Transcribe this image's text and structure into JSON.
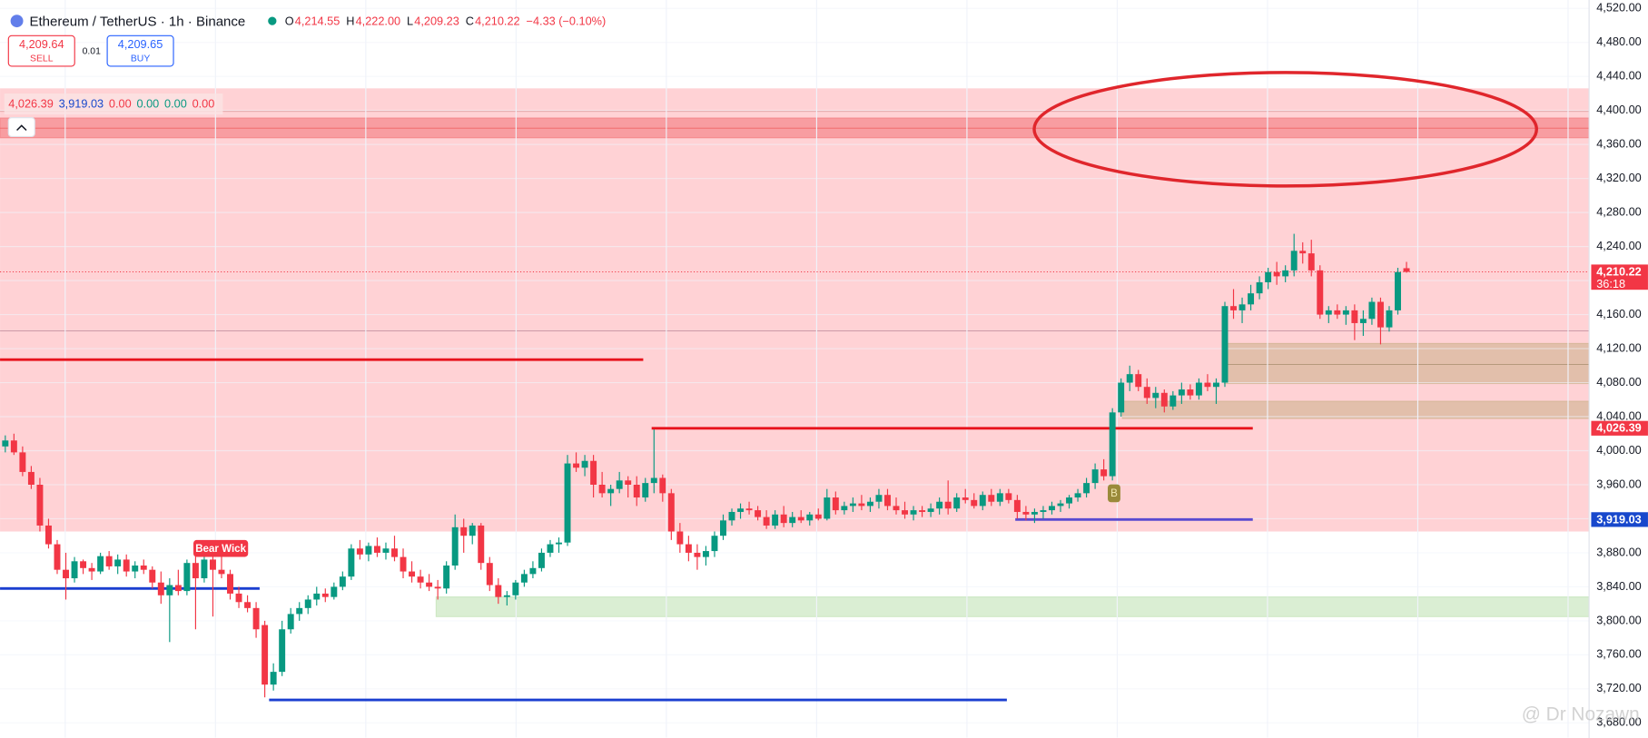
{
  "chart_data": {
    "type": "candlestick",
    "header": {
      "symbol": "Ethereum / TetherUS · 1h · Binance",
      "ohlc_labels": [
        "O",
        "H",
        "L",
        "C"
      ],
      "ohlc_values": [
        "4,214.55",
        "4,222.00",
        "4,209.23",
        "4,210.22"
      ],
      "change": "−4.33 (−0.10%)"
    },
    "trade": {
      "sell_price": "4,209.64",
      "sell_label": "SELL",
      "spread": "0.01",
      "buy_price": "4,209.65",
      "buy_label": "BUY"
    },
    "indicator_values": [
      {
        "label": "4,026.39",
        "color": "#f23645"
      },
      {
        "label": "3,919.03",
        "color": "#1848cc"
      },
      {
        "label": "0.00",
        "color": "#f23645"
      },
      {
        "label": "0.00",
        "color": "#089981"
      },
      {
        "label": "0.00",
        "color": "#089981"
      },
      {
        "label": "0.00",
        "color": "#f23645"
      }
    ],
    "up_color": "#089981",
    "down_color": "#f23645",
    "open": [
      4005,
      4012,
      3998,
      3975,
      3960,
      3912,
      3890,
      3860,
      3850,
      3870,
      3862,
      3858,
      3876,
      3864,
      3872,
      3858,
      3865,
      3860,
      3845,
      3830,
      3842,
      3835,
      3868,
      3850,
      3872,
      3860,
      3855,
      3832,
      3822,
      3815,
      3795,
      3725,
      3740,
      3790,
      3808,
      3815,
      3825,
      3832,
      3828,
      3840,
      3852,
      3885,
      3878,
      3888,
      3880,
      3885,
      3875,
      3858,
      3852,
      3845,
      3840,
      3838,
      3865,
      3910,
      3900,
      3912,
      3868,
      3842,
      3828,
      3830,
      3845,
      3855,
      3862,
      3880,
      3890,
      3892,
      3985,
      3980,
      3988,
      3960,
      3950,
      3955,
      3965,
      3960,
      3945,
      3962,
      3968,
      3950,
      3905,
      3890,
      3880,
      3875,
      3882,
      3900,
      3918,
      3928,
      3932,
      3930,
      3922,
      3912,
      3925,
      3915,
      3922,
      3918,
      3925,
      3920,
      3945,
      3930,
      3935,
      3938,
      3935,
      3940,
      3948,
      3935,
      3930,
      3925,
      3930,
      3928,
      3932,
      3940,
      3932,
      3945,
      3942,
      3935,
      3948,
      3940,
      3950,
      3942,
      3928,
      3925,
      3928,
      3930,
      3935,
      3938,
      3945,
      3950,
      3962,
      3978,
      3970,
      4045,
      4080,
      4090,
      4075,
      4062,
      4068,
      4052,
      4065,
      4072,
      4065,
      4080,
      4075,
      4080,
      4170,
      4165,
      4172,
      4185,
      4198,
      4210,
      4205,
      4212,
      4235,
      4232,
      4212,
      4160,
      4165,
      4160,
      4165,
      4150,
      4155,
      4175,
      4145,
      4165,
      4214.55
    ],
    "high": [
      4018,
      4020,
      4005,
      3982,
      3968,
      3920,
      3895,
      3880,
      3875,
      3872,
      3868,
      3880,
      3882,
      3878,
      3878,
      3870,
      3872,
      3864,
      3858,
      3850,
      3860,
      3872,
      3880,
      3878,
      3880,
      3880,
      3860,
      3840,
      3830,
      3822,
      3800,
      3750,
      3800,
      3815,
      3822,
      3830,
      3840,
      3838,
      3845,
      3858,
      3890,
      3895,
      3892,
      3898,
      3892,
      3900,
      3885,
      3870,
      3860,
      3855,
      3848,
      3870,
      3925,
      3920,
      3915,
      3915,
      3875,
      3850,
      3835,
      3848,
      3860,
      3870,
      3885,
      3895,
      3898,
      3995,
      3998,
      3995,
      3995,
      3975,
      3960,
      3975,
      3970,
      3970,
      3968,
      4025,
      3972,
      3955,
      3915,
      3900,
      3890,
      3888,
      3905,
      3925,
      3932,
      3938,
      3940,
      3935,
      3930,
      3930,
      3935,
      3928,
      3930,
      3928,
      3932,
      3955,
      3952,
      3940,
      3945,
      3948,
      3945,
      3955,
      3955,
      3945,
      3940,
      3935,
      3935,
      3938,
      3945,
      3965,
      3950,
      3955,
      3950,
      3952,
      3955,
      3955,
      3955,
      3948,
      3935,
      3932,
      3935,
      3940,
      3942,
      3948,
      3955,
      3968,
      3985,
      3990,
      4050,
      4085,
      4100,
      4095,
      4085,
      4075,
      4072,
      4070,
      4080,
      4078,
      4085,
      4090,
      4085,
      4175,
      4190,
      4180,
      4195,
      4205,
      4215,
      4222,
      4218,
      4255,
      4245,
      4248,
      4218,
      4170,
      4172,
      4170,
      4172,
      4165,
      4180,
      4180,
      4170,
      4215,
      4222
    ],
    "low": [
      3998,
      3995,
      3970,
      3955,
      3905,
      3885,
      3855,
      3825,
      3845,
      3855,
      3848,
      3855,
      3860,
      3855,
      3852,
      3850,
      3855,
      3838,
      3820,
      3775,
      3830,
      3830,
      3790,
      3845,
      3805,
      3850,
      3825,
      3815,
      3810,
      3780,
      3710,
      3718,
      3735,
      3785,
      3800,
      3808,
      3818,
      3822,
      3825,
      3836,
      3848,
      3872,
      3870,
      3875,
      3872,
      3870,
      3850,
      3845,
      3838,
      3835,
      3825,
      3832,
      3860,
      3880,
      3890,
      3860,
      3835,
      3820,
      3818,
      3825,
      3840,
      3850,
      3858,
      3875,
      3880,
      3888,
      3975,
      3970,
      3945,
      3945,
      3935,
      3950,
      3945,
      3935,
      3940,
      3950,
      3940,
      3895,
      3880,
      3870,
      3860,
      3865,
      3875,
      3895,
      3912,
      3920,
      3925,
      3918,
      3908,
      3908,
      3910,
      3910,
      3915,
      3912,
      3918,
      3918,
      3925,
      3925,
      3928,
      3930,
      3928,
      3932,
      3930,
      3925,
      3920,
      3918,
      3922,
      3922,
      3925,
      3925,
      3928,
      3938,
      3932,
      3930,
      3935,
      3935,
      3938,
      3920,
      3918,
      3915,
      3920,
      3925,
      3928,
      3932,
      3940,
      3945,
      3955,
      3965,
      3965,
      4040,
      4070,
      4070,
      4055,
      4050,
      4045,
      4048,
      4055,
      4060,
      4060,
      4070,
      4055,
      4075,
      4155,
      4150,
      4165,
      4178,
      4190,
      4195,
      4198,
      4205,
      4220,
      4205,
      4155,
      4150,
      4155,
      4148,
      4130,
      4135,
      4148,
      4125,
      4140,
      4160,
      4209.23
    ],
    "close": [
      4012,
      3998,
      3975,
      3960,
      3912,
      3890,
      3860,
      3850,
      3870,
      3862,
      3858,
      3876,
      3864,
      3872,
      3858,
      3865,
      3860,
      3845,
      3830,
      3842,
      3835,
      3868,
      3850,
      3872,
      3860,
      3855,
      3832,
      3822,
      3815,
      3790,
      3725,
      3740,
      3790,
      3808,
      3815,
      3825,
      3832,
      3828,
      3840,
      3852,
      3885,
      3878,
      3888,
      3880,
      3885,
      3875,
      3858,
      3852,
      3845,
      3840,
      3838,
      3865,
      3910,
      3900,
      3912,
      3868,
      3842,
      3828,
      3830,
      3845,
      3855,
      3862,
      3880,
      3890,
      3892,
      3985,
      3980,
      3988,
      3960,
      3950,
      3955,
      3965,
      3960,
      3945,
      3962,
      3968,
      3950,
      3905,
      3890,
      3880,
      3875,
      3882,
      3900,
      3918,
      3928,
      3932,
      3930,
      3922,
      3912,
      3925,
      3915,
      3922,
      3918,
      3925,
      3920,
      3945,
      3930,
      3935,
      3938,
      3935,
      3940,
      3948,
      3935,
      3930,
      3925,
      3930,
      3928,
      3932,
      3940,
      3932,
      3945,
      3942,
      3935,
      3948,
      3940,
      3950,
      3942,
      3928,
      3925,
      3928,
      3930,
      3935,
      3938,
      3945,
      3950,
      3962,
      3978,
      3970,
      4045,
      4080,
      4090,
      4075,
      4062,
      4068,
      4052,
      4065,
      4072,
      4065,
      4080,
      4075,
      4080,
      4170,
      4165,
      4172,
      4185,
      4198,
      4210,
      4205,
      4212,
      4235,
      4232,
      4212,
      4160,
      4165,
      4160,
      4165,
      4150,
      4155,
      4175,
      4145,
      4165,
      4210,
      4210.22
    ],
    "ylim": [
      3680,
      4520
    ],
    "yticks": [
      {
        "value": 3680,
        "label": "3,680.00"
      },
      {
        "value": 3720,
        "label": "3,720.00"
      },
      {
        "value": 3760,
        "label": "3,760.00"
      },
      {
        "value": 3800,
        "label": "3,800.00"
      },
      {
        "value": 3840,
        "label": "3,840.00"
      },
      {
        "value": 3880,
        "label": "3,880.00"
      },
      {
        "value": 3920,
        "label": "3,920.00"
      },
      {
        "value": 3960,
        "label": "3,960.00"
      },
      {
        "value": 4000,
        "label": "4,000.00"
      },
      {
        "value": 4040,
        "label": "4,040.00"
      },
      {
        "value": 4080,
        "label": "4,080.00"
      },
      {
        "value": 4120,
        "label": "4,120.00"
      },
      {
        "value": 4160,
        "label": "4,160.00"
      },
      {
        "value": 4200,
        "label": "4,200.00"
      },
      {
        "value": 4240,
        "label": "4,240.00"
      },
      {
        "value": 4280,
        "label": "4,280.00"
      },
      {
        "value": 4320,
        "label": "4,320.00"
      },
      {
        "value": 4360,
        "label": "4,360.00"
      },
      {
        "value": 4400,
        "label": "4,400.00"
      },
      {
        "value": 4440,
        "label": "4,440.00"
      },
      {
        "value": 4480,
        "label": "4,480.00"
      },
      {
        "value": 4520,
        "label": "4,520.00"
      }
    ],
    "grid": true,
    "last_price": {
      "value": 4210.22,
      "label": "4,210.22",
      "countdown": "36:18",
      "color": "#f23645"
    },
    "levels": [
      {
        "value": 4026.39,
        "label": "4,026.39",
        "color": "#f23645"
      },
      {
        "value": 3919.03,
        "label": "3,919.03",
        "color": "#1848cc"
      }
    ],
    "zones": [
      {
        "low": 3905,
        "high": 4426,
        "color": "#ffcdd0"
      },
      {
        "low": 4368,
        "high": 4391,
        "color": "#f58b8f"
      },
      {
        "low": 3805,
        "high": 3828,
        "color": "#cde8c4"
      },
      {
        "low": 4079,
        "high": 4126,
        "color": "#d8b89c"
      },
      {
        "low": 4038,
        "high": 4058,
        "color": "#d8b89c"
      }
    ],
    "lines": [
      {
        "value": 4107,
        "color": "#e8121c"
      },
      {
        "value": 4026.39,
        "color": "#e8121c"
      },
      {
        "value": 3838,
        "color": "#1b3fd0"
      },
      {
        "value": 3707,
        "color": "#1b3fd0"
      },
      {
        "value": 3919.03,
        "color": "#5a4ad0"
      }
    ],
    "annotations": [
      "Bear Wick",
      "B"
    ],
    "watermark": "@ Dr Nozawn"
  }
}
